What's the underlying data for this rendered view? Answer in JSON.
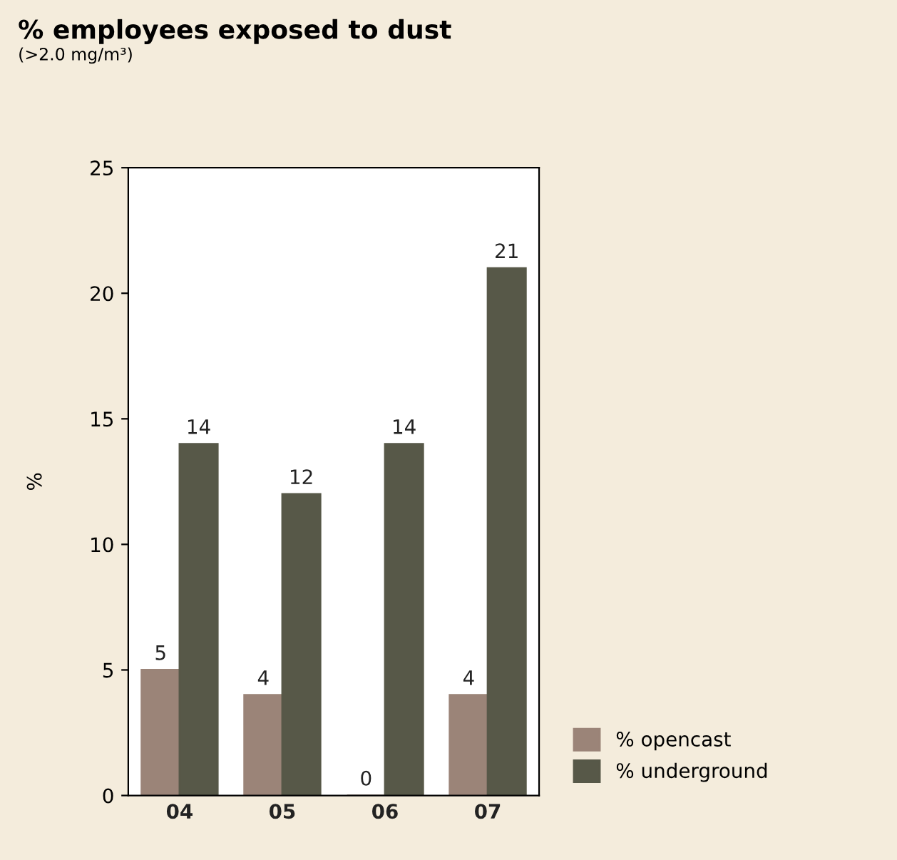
{
  "chart_data": {
    "type": "bar",
    "title": "% employees exposed to dust",
    "subtitle": "(>2.0 mg/m³)",
    "ylabel": "%",
    "categories": [
      "04",
      "05",
      "06",
      "07"
    ],
    "series": [
      {
        "name": "% opencast",
        "color": "#9b8478",
        "values": [
          5,
          4,
          0,
          4
        ]
      },
      {
        "name": "% underground",
        "color": "#575848",
        "values": [
          14,
          12,
          14,
          21
        ]
      }
    ],
    "ylim": [
      0,
      25
    ],
    "yticks": [
      0,
      5,
      10,
      15,
      20,
      25
    ],
    "grid": false,
    "data_labels": true,
    "legend": "bottom right"
  }
}
